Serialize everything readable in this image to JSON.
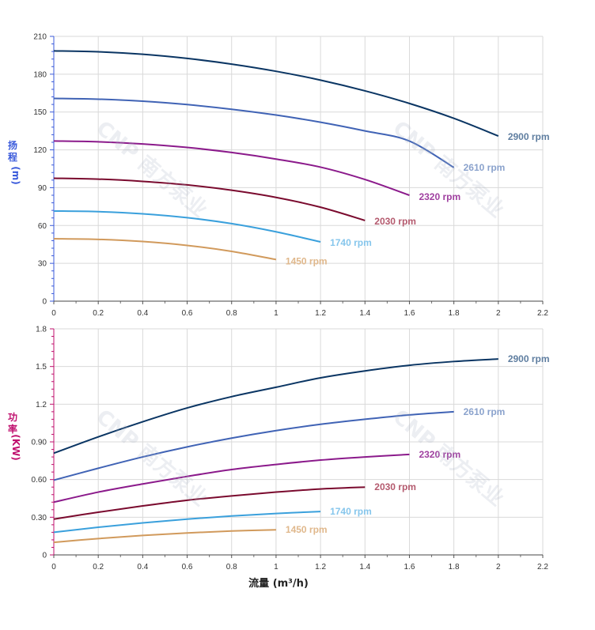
{
  "chart_data": [
    {
      "type": "line",
      "ylabel": "扬程",
      "yunit": "(m)",
      "xlim": [
        0,
        2.2
      ],
      "ylim": [
        0,
        210
      ],
      "xticks": [
        "0",
        "0.2",
        "0.4",
        "0.6",
        "0.8",
        "1",
        "1.2",
        "1.4",
        "1.6",
        "1.8",
        "2",
        "2.2"
      ],
      "yticks": [
        "0",
        "30",
        "60",
        "90",
        "120",
        "150",
        "180",
        "210"
      ],
      "axis_color": "#3b5bdb",
      "grid": true,
      "series": [
        {
          "name": "2900 rpm",
          "color": "#0a3563",
          "label_color": "#5f7ea0",
          "x": [
            0,
            0.2,
            0.4,
            0.6,
            0.8,
            1.0,
            1.2,
            1.4,
            1.6,
            1.8,
            2.0
          ],
          "y": [
            198.5,
            197.8,
            195.8,
            192.5,
            188.0,
            182.3,
            175.3,
            166.8,
            156.8,
            145.0,
            131.0
          ]
        },
        {
          "name": "2610 rpm",
          "color": "#4063b5",
          "label_color": "#8aa2cc",
          "x": [
            0,
            0.2,
            0.4,
            0.6,
            0.8,
            1.0,
            1.2,
            1.4,
            1.6,
            1.8
          ],
          "y": [
            160.8,
            160.2,
            158.6,
            155.9,
            152.2,
            147.6,
            141.9,
            135.0,
            127.0,
            106.0
          ]
        },
        {
          "name": "2320 rpm",
          "color": "#8b1a8b",
          "label_color": "#a040a0",
          "x": [
            0,
            0.2,
            0.4,
            0.6,
            0.8,
            1.0,
            1.2,
            1.4,
            1.6
          ],
          "y": [
            127.0,
            126.4,
            124.7,
            121.9,
            117.9,
            112.7,
            106.3,
            96.5,
            84.0
          ]
        },
        {
          "name": "2030 rpm",
          "color": "#7a0a2e",
          "label_color": "#b45a6e",
          "x": [
            0,
            0.2,
            0.4,
            0.6,
            0.8,
            1.0,
            1.2,
            1.4
          ],
          "y": [
            97.5,
            96.8,
            95.0,
            92.2,
            88.0,
            82.3,
            74.5,
            64.0
          ]
        },
        {
          "name": "1740 rpm",
          "color": "#3aa0dc",
          "label_color": "#86c6ec",
          "x": [
            0,
            0.2,
            0.4,
            0.6,
            0.8,
            1.0,
            1.2
          ],
          "y": [
            71.5,
            71.0,
            69.3,
            66.2,
            61.5,
            55.0,
            47.0
          ]
        },
        {
          "name": "1450 rpm",
          "color": "#d19a5c",
          "label_color": "#e0b88c",
          "x": [
            0,
            0.2,
            0.4,
            0.6,
            0.8,
            1.0
          ],
          "y": [
            49.5,
            49.0,
            47.3,
            44.2,
            39.5,
            33.0
          ]
        }
      ]
    },
    {
      "type": "line",
      "ylabel": "功率",
      "yunit": "(KW)",
      "xlabel": "流量 (m³/h)",
      "xlim": [
        0,
        2.2
      ],
      "ylim": [
        0,
        1.8
      ],
      "xticks": [
        "0",
        "0.2",
        "0.4",
        "0.6",
        "0.8",
        "1",
        "1.2",
        "1.4",
        "1.6",
        "1.8",
        "2",
        "2.2"
      ],
      "yticks": [
        "0",
        "0.30",
        "0.60",
        "0.90",
        "1.2",
        "1.5",
        "1.8"
      ],
      "axis_color": "#c0106e",
      "grid": true,
      "series": [
        {
          "name": "2900 rpm",
          "color": "#0a3563",
          "label_color": "#5f7ea0",
          "x": [
            0,
            0.2,
            0.4,
            0.6,
            0.8,
            1.0,
            1.2,
            1.4,
            1.6,
            1.8,
            2.0
          ],
          "y": [
            0.81,
            0.94,
            1.06,
            1.17,
            1.26,
            1.335,
            1.41,
            1.465,
            1.51,
            1.54,
            1.56
          ]
        },
        {
          "name": "2610 rpm",
          "color": "#4063b5",
          "label_color": "#8aa2cc",
          "x": [
            0,
            0.2,
            0.4,
            0.6,
            0.8,
            1.0,
            1.2,
            1.4,
            1.6,
            1.8
          ],
          "y": [
            0.595,
            0.69,
            0.78,
            0.86,
            0.93,
            0.99,
            1.04,
            1.08,
            1.115,
            1.14
          ]
        },
        {
          "name": "2320 rpm",
          "color": "#8b1a8b",
          "label_color": "#a040a0",
          "x": [
            0,
            0.2,
            0.4,
            0.6,
            0.8,
            1.0,
            1.2,
            1.4,
            1.6
          ],
          "y": [
            0.42,
            0.5,
            0.565,
            0.625,
            0.68,
            0.72,
            0.755,
            0.78,
            0.8
          ]
        },
        {
          "name": "2030 rpm",
          "color": "#7a0a2e",
          "label_color": "#b45a6e",
          "x": [
            0,
            0.2,
            0.4,
            0.6,
            0.8,
            1.0,
            1.2,
            1.4
          ],
          "y": [
            0.285,
            0.34,
            0.39,
            0.435,
            0.47,
            0.5,
            0.525,
            0.54
          ]
        },
        {
          "name": "1740 rpm",
          "color": "#3aa0dc",
          "label_color": "#86c6ec",
          "x": [
            0,
            0.2,
            0.4,
            0.6,
            0.8,
            1.0,
            1.2
          ],
          "y": [
            0.18,
            0.22,
            0.255,
            0.285,
            0.31,
            0.33,
            0.345
          ]
        },
        {
          "name": "1450 rpm",
          "color": "#d19a5c",
          "label_color": "#e0b88c",
          "x": [
            0,
            0.2,
            0.4,
            0.6,
            0.8,
            1.0
          ],
          "y": [
            0.1,
            0.13,
            0.155,
            0.175,
            0.19,
            0.2
          ]
        }
      ]
    }
  ],
  "watermark": {
    "text": "CNP 南方泵业",
    "color": "#aab4c6"
  }
}
